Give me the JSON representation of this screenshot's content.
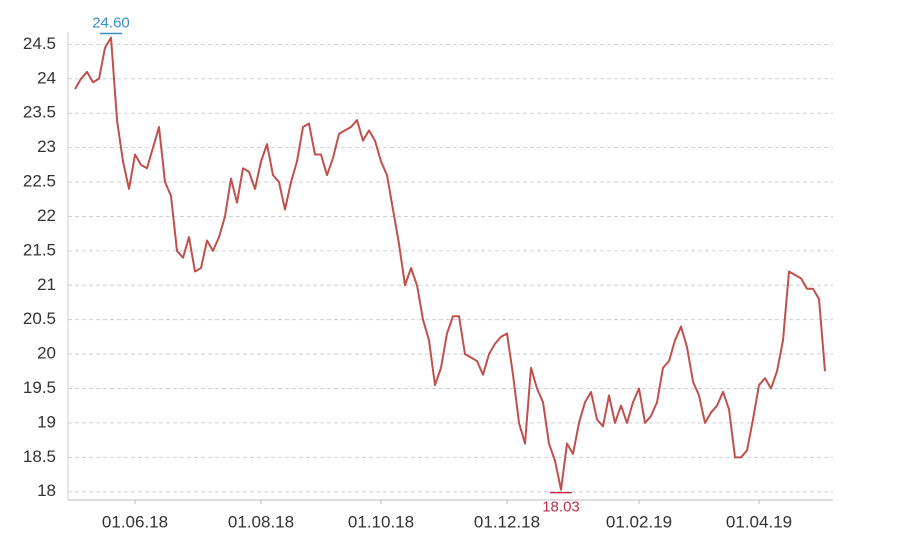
{
  "chart_data": {
    "type": "line",
    "categories": [
      null,
      null,
      null,
      null,
      null,
      null,
      null,
      null,
      null,
      null,
      "01.06.18",
      null,
      null,
      null,
      null,
      null,
      null,
      null,
      null,
      null,
      null,
      null,
      null,
      null,
      null,
      null,
      null,
      null,
      null,
      null,
      null,
      "01.08.18",
      null,
      null,
      null,
      null,
      null,
      null,
      null,
      null,
      null,
      null,
      null,
      null,
      null,
      null,
      null,
      null,
      null,
      null,
      null,
      "01.10.18",
      null,
      null,
      null,
      null,
      null,
      null,
      null,
      null,
      null,
      null,
      null,
      null,
      null,
      null,
      null,
      null,
      null,
      null,
      null,
      null,
      "01.12.18",
      null,
      null,
      null,
      null,
      null,
      null,
      null,
      null,
      null,
      null,
      null,
      null,
      null,
      null,
      null,
      null,
      null,
      null,
      null,
      null,
      null,
      "01.02.19",
      null,
      null,
      null,
      null,
      null,
      null,
      null,
      null,
      null,
      null,
      null,
      null,
      null,
      null,
      null,
      null,
      null,
      null,
      null,
      "01.04.19",
      null,
      null,
      null,
      null,
      null,
      null,
      null,
      null,
      null,
      null,
      null
    ],
    "values": [
      23.85,
      24.0,
      24.1,
      23.95,
      24.0,
      24.45,
      24.6,
      23.4,
      22.8,
      22.4,
      22.9,
      22.75,
      22.7,
      23.0,
      23.3,
      22.5,
      22.3,
      21.5,
      21.4,
      21.7,
      21.2,
      21.25,
      21.65,
      21.5,
      21.7,
      22.0,
      22.55,
      22.2,
      22.7,
      22.65,
      22.4,
      22.8,
      23.05,
      22.6,
      22.5,
      22.1,
      22.5,
      22.8,
      23.3,
      23.35,
      22.9,
      22.9,
      22.6,
      22.85,
      23.2,
      23.25,
      23.3,
      23.4,
      23.1,
      23.25,
      23.1,
      22.8,
      22.6,
      22.1,
      21.6,
      21.0,
      21.25,
      21.0,
      20.5,
      20.2,
      19.55,
      19.8,
      20.3,
      20.55,
      20.55,
      20.0,
      19.95,
      19.9,
      19.7,
      20.0,
      20.15,
      20.25,
      20.3,
      19.7,
      19.0,
      18.7,
      19.8,
      19.5,
      19.3,
      18.7,
      18.45,
      18.03,
      18.7,
      18.55,
      19.0,
      19.3,
      19.45,
      19.05,
      18.95,
      19.4,
      19.0,
      19.25,
      19.0,
      19.3,
      19.5,
      19.0,
      19.1,
      19.3,
      19.8,
      19.9,
      20.2,
      20.4,
      20.1,
      19.6,
      19.4,
      19.0,
      19.15,
      19.25,
      19.45,
      19.2,
      18.5,
      18.5,
      18.6,
      19.05,
      19.55,
      19.65,
      19.5,
      19.75,
      20.2,
      21.2,
      21.15,
      21.1,
      20.95,
      20.95,
      20.8,
      19.75
    ],
    "value_labels": [
      null,
      null,
      null,
      null,
      null,
      null,
      "24.60",
      null,
      null,
      null,
      null,
      null,
      null,
      null,
      null,
      null,
      null,
      null,
      null,
      null,
      null,
      null,
      null,
      null,
      null,
      null,
      null,
      null,
      null,
      null,
      null,
      null,
      null,
      null,
      null,
      null,
      null,
      null,
      null,
      null,
      null,
      null,
      null,
      null,
      null,
      null,
      null,
      null,
      null,
      null,
      null,
      null,
      null,
      null,
      null,
      null,
      null,
      null,
      null,
      null,
      null,
      null,
      null,
      null,
      null,
      null,
      null,
      null,
      null,
      null,
      null,
      null,
      null,
      null,
      null,
      null,
      null,
      null,
      null,
      null,
      null,
      "18.03",
      null,
      null,
      null,
      null,
      null,
      null,
      null,
      null,
      null,
      null,
      null,
      null,
      null,
      null,
      null,
      null,
      null,
      null,
      null,
      null,
      null,
      null,
      null,
      null,
      null,
      null,
      null,
      null,
      null,
      null,
      null,
      null,
      null,
      null,
      null,
      null,
      null,
      null,
      null,
      null,
      null,
      null,
      null,
      null
    ],
    "color": "#c0504d",
    "max_label_color": "#3a8fc8",
    "min_label_color": "#c0304a",
    "ylim": [
      17.88,
      24.68
    ],
    "yticks": [
      18,
      18.5,
      19,
      19.5,
      20,
      20.5,
      21,
      21.5,
      22,
      22.5,
      23,
      23.5,
      24,
      24.5
    ],
    "grid": true
  }
}
